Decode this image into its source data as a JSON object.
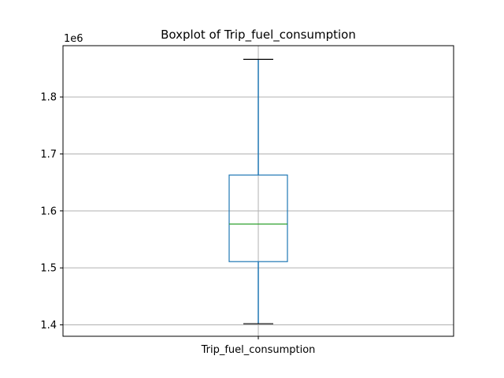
{
  "chart_data": {
    "type": "boxplot",
    "title": "Boxplot of Trip_fuel_consumption",
    "categories": [
      "Trip_fuel_consumption"
    ],
    "y_offset_label": "1e6",
    "ylim": [
      1.38,
      1.89
    ],
    "y_scale": 1000000,
    "yticks": [
      1.4,
      1.5,
      1.6,
      1.7,
      1.8
    ],
    "ytick_labels": [
      "1.4",
      "1.5",
      "1.6",
      "1.7",
      "1.8"
    ],
    "grid": true,
    "series": [
      {
        "stats": {
          "whisker_low": 1.402,
          "q1": 1.511,
          "median": 1.577,
          "q3": 1.663,
          "whisker_high": 1.866
        }
      }
    ],
    "colors": {
      "box": "#1f77b4",
      "median": "#2ca02c",
      "caps": "#000000",
      "grid": "#b0b0b0",
      "axes": "#000000"
    }
  }
}
